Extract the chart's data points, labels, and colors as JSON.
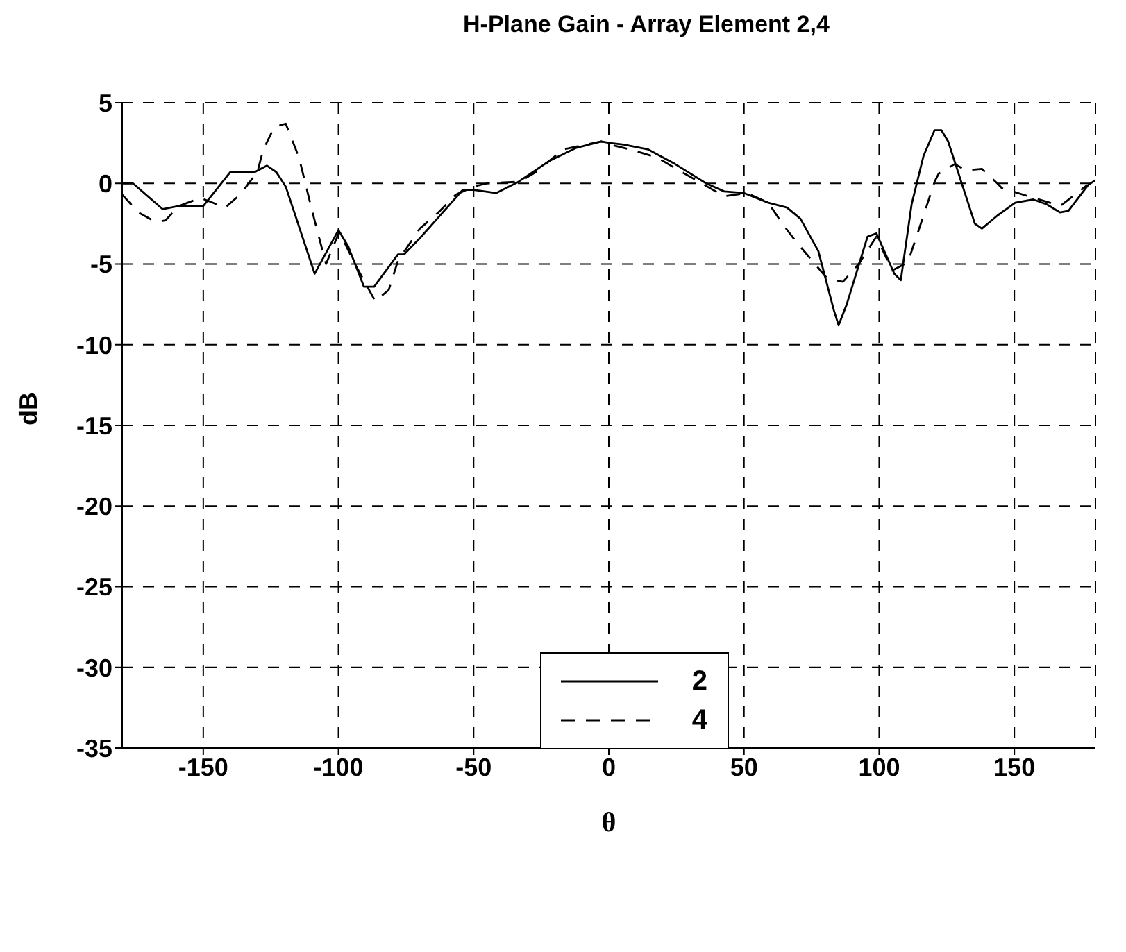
{
  "chart_data": {
    "type": "line",
    "title": "H-Plane Gain - Array Element 2,4",
    "xlabel": "θ",
    "ylabel": "dB",
    "xlim": [
      -180,
      180
    ],
    "xticks": [
      -150,
      -100,
      -50,
      0,
      50,
      100,
      150
    ],
    "ylim": [
      -35,
      5
    ],
    "yticks": [
      -35,
      -30,
      -25,
      -20,
      -15,
      -10,
      -5,
      0,
      5
    ],
    "grid": true,
    "legend": "bottom",
    "marker": "none",
    "series": [
      {
        "name": "2",
        "color": "#000000",
        "line_style": "solid",
        "x": [
          -180,
          -176,
          -165,
          -159,
          -150,
          -140,
          -136,
          -131,
          -126.5,
          -123,
          -119.5,
          -108.8,
          -100,
          -96.4,
          -90.6,
          -86.8,
          -78,
          -75.7,
          -69.9,
          -63,
          -54,
          -50,
          -41.7,
          -33.4,
          -21.9,
          -12,
          -2.8,
          0.5,
          5.5,
          14.6,
          24.5,
          36,
          42.7,
          50,
          59,
          65.9,
          70.9,
          77.5,
          83.3,
          85,
          88,
          95.7,
          99,
          105.6,
          108,
          112,
          116.4,
          120.5,
          123,
          125.5,
          135.4,
          138,
          143.7,
          150.3,
          157,
          162,
          166.9,
          170,
          177.3,
          180
        ],
        "values": [
          0,
          0,
          -1.6,
          -1.4,
          -1.4,
          0.7,
          0.7,
          0.7,
          1.1,
          0.7,
          -0.2,
          -5.6,
          -2.9,
          -3.9,
          -6.4,
          -6.4,
          -4.4,
          -4.4,
          -3.4,
          -2.1,
          -0.4,
          -0.4,
          -0.6,
          0.1,
          1.4,
          2.2,
          2.6,
          2.5,
          2.4,
          2.1,
          1.2,
          0,
          -0.5,
          -0.6,
          -1.2,
          -1.5,
          -2.2,
          -4.2,
          -7.9,
          -8.8,
          -7.5,
          -3.3,
          -3.1,
          -5.6,
          -6,
          -1.3,
          1.7,
          3.3,
          3.3,
          2.6,
          -2.5,
          -2.8,
          -2,
          -1.2,
          -1,
          -1.3,
          -1.8,
          -1.7,
          -0.1,
          0.2
        ]
      },
      {
        "name": "4",
        "color": "#000000",
        "line_style": "dashed",
        "x": [
          -180,
          -174,
          -167.5,
          -164,
          -159,
          -151,
          -141.9,
          -136.4,
          -130,
          -127.8,
          -123.7,
          -119.5,
          -114.6,
          -109.6,
          -104.6,
          -99.7,
          -93.9,
          -86.4,
          -81.4,
          -78,
          -69.9,
          -63,
          -56.6,
          -50,
          -45,
          -33,
          -27,
          -16.9,
          -2.8,
          0.5,
          7.9,
          17.9,
          26,
          42.7,
          51,
          59,
          64.2,
          69.2,
          80.8,
          86.6,
          92.4,
          99,
          104.8,
          110.6,
          115.6,
          120.5,
          122,
          128,
          132,
          138,
          143.7,
          145.4,
          167,
          177
        ],
        "values": [
          -0.7,
          -1.8,
          -2.4,
          -2.3,
          -1.4,
          -0.9,
          -1.5,
          -0.7,
          0.7,
          2.1,
          3.5,
          3.7,
          1.6,
          -1.8,
          -5,
          -3,
          -5,
          -7.3,
          -6.6,
          -4.8,
          -2.8,
          -1.8,
          -0.7,
          -0.2,
          0,
          0.1,
          0.7,
          2.1,
          2.6,
          2.4,
          2.1,
          1.6,
          0.8,
          -0.8,
          -0.6,
          -1.2,
          -2.5,
          -3.6,
          -5.9,
          -6.1,
          -5,
          -3.3,
          -5.4,
          -4.9,
          -2.4,
          0.1,
          0.6,
          1.2,
          0.8,
          0.9,
          0,
          -0.3,
          -1.4,
          -0.1
        ]
      }
    ]
  }
}
